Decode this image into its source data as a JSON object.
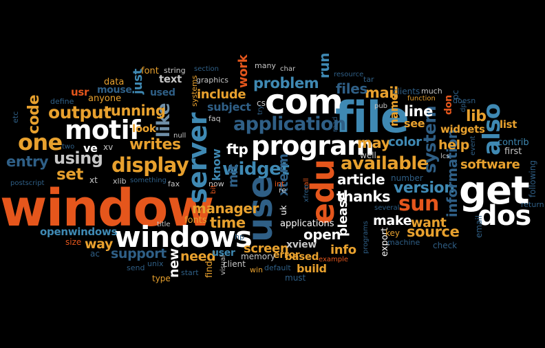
{
  "palette": {
    "background": "#000000",
    "orange_red": "#E5561C",
    "orange": "#E8A12E",
    "white": "#FFFFFF",
    "blue": "#3F89B3",
    "dark_blue": "#2F5F86",
    "light_gray": "#C7C7C7",
    "gray_blue": "#6F8FA8"
  },
  "words": [
    {
      "text": "window",
      "color": "orange_red"
    },
    {
      "text": "com",
      "color": "white"
    },
    {
      "text": "file",
      "color": "blue"
    },
    {
      "text": "get",
      "color": "white"
    },
    {
      "text": "program",
      "color": "white"
    },
    {
      "text": "windows",
      "color": "white"
    },
    {
      "text": "motif",
      "color": "white"
    },
    {
      "text": "server",
      "color": "blue"
    },
    {
      "text": "use",
      "color": "dark_blue"
    },
    {
      "text": "edu",
      "color": "orange_red"
    },
    {
      "text": "dos",
      "color": "white"
    },
    {
      "text": "one",
      "color": "orange"
    },
    {
      "text": "application",
      "color": "dark_blue"
    },
    {
      "text": "display",
      "color": "orange"
    },
    {
      "text": "available",
      "color": "orange"
    },
    {
      "text": "also",
      "color": "blue"
    },
    {
      "text": "sun",
      "color": "orange_red"
    },
    {
      "text": "widget",
      "color": "blue"
    },
    {
      "text": "using",
      "color": "light_gray"
    },
    {
      "text": "output",
      "color": "orange"
    },
    {
      "text": "like",
      "color": "gray_blue"
    },
    {
      "text": "version",
      "color": "blue"
    },
    {
      "text": "set",
      "color": "orange"
    },
    {
      "text": "entry",
      "color": "dark_blue"
    },
    {
      "text": "code",
      "color": "orange"
    },
    {
      "text": "writes",
      "color": "orange"
    },
    {
      "text": "software",
      "color": "orange"
    },
    {
      "text": "problem",
      "color": "blue"
    },
    {
      "text": "system",
      "color": "dark_blue"
    },
    {
      "text": "line",
      "color": "white"
    },
    {
      "text": "lib",
      "color": "orange"
    },
    {
      "text": "running",
      "color": "orange"
    },
    {
      "text": "information",
      "color": "dark_blue"
    },
    {
      "text": "source",
      "color": "orange"
    },
    {
      "text": "manager",
      "color": "orange"
    },
    {
      "text": "time",
      "color": "orange"
    },
    {
      "text": "thanks",
      "color": "white"
    },
    {
      "text": "mail",
      "color": "orange"
    },
    {
      "text": "files",
      "color": "dark_blue"
    },
    {
      "text": "may",
      "color": "orange"
    },
    {
      "text": "article",
      "color": "white"
    },
    {
      "text": "open",
      "color": "white"
    },
    {
      "text": "xterm",
      "color": "dark_blue"
    },
    {
      "text": "please",
      "color": "white"
    },
    {
      "text": "want",
      "color": "orange"
    },
    {
      "text": "make",
      "color": "white"
    },
    {
      "text": "info",
      "color": "orange"
    },
    {
      "text": "need",
      "color": "orange"
    },
    {
      "text": "support",
      "color": "dark_blue"
    },
    {
      "text": "way",
      "color": "orange"
    },
    {
      "text": "screen",
      "color": "orange"
    },
    {
      "text": "new",
      "color": "white"
    },
    {
      "text": "help",
      "color": "orange"
    },
    {
      "text": "color",
      "color": "blue"
    },
    {
      "text": "just",
      "color": "blue"
    },
    {
      "text": "mit",
      "color": "dark_blue"
    },
    {
      "text": "include",
      "color": "orange"
    },
    {
      "text": "work",
      "color": "orange_red"
    },
    {
      "text": "run",
      "color": "blue"
    },
    {
      "text": "ftp",
      "color": "white"
    },
    {
      "text": "know",
      "color": "blue"
    },
    {
      "text": "subject",
      "color": "dark_blue"
    },
    {
      "text": "used",
      "color": "dark_blue"
    },
    {
      "text": "text",
      "color": "light_gray"
    },
    {
      "text": "font",
      "color": "orange"
    },
    {
      "text": "data",
      "color": "orange"
    },
    {
      "text": "usr",
      "color": "orange_red"
    },
    {
      "text": "mouse",
      "color": "dark_blue"
    },
    {
      "text": "anyone",
      "color": "orange"
    },
    {
      "text": "look",
      "color": "orange"
    },
    {
      "text": "ve",
      "color": "white"
    },
    {
      "text": "xv",
      "color": "light_gray"
    },
    {
      "text": "xt",
      "color": "light_gray"
    },
    {
      "text": "xlib",
      "color": "light_gray"
    },
    {
      "text": "fax",
      "color": "light_gray"
    },
    {
      "text": "now",
      "color": "light_gray"
    },
    {
      "text": "fonts",
      "color": "orange"
    },
    {
      "text": "user",
      "color": "blue"
    },
    {
      "text": "xview",
      "color": "light_gray"
    },
    {
      "text": "error",
      "color": "orange"
    },
    {
      "text": "based",
      "color": "orange"
    },
    {
      "text": "build",
      "color": "orange"
    },
    {
      "text": "memory",
      "color": "light_gray"
    },
    {
      "text": "client",
      "color": "light_gray"
    },
    {
      "text": "applications",
      "color": "white"
    },
    {
      "text": "uk",
      "color": "white"
    },
    {
      "text": "name",
      "color": "orange"
    },
    {
      "text": "see",
      "color": "orange"
    },
    {
      "text": "well",
      "color": "light_gray"
    },
    {
      "text": "export",
      "color": "white"
    },
    {
      "text": "widgets",
      "color": "orange"
    },
    {
      "text": "list",
      "color": "orange"
    },
    {
      "text": "contrib",
      "color": "blue"
    },
    {
      "text": "first",
      "color": "light_gray"
    },
    {
      "text": "email",
      "color": "dark_blue"
    },
    {
      "text": "openwindows",
      "color": "blue"
    },
    {
      "text": "graphics",
      "color": "light_gray"
    },
    {
      "text": "string",
      "color": "light_gray"
    },
    {
      "text": "section",
      "color": "dark_blue"
    },
    {
      "text": "many",
      "color": "light_gray"
    },
    {
      "text": "char",
      "color": "light_gray"
    },
    {
      "text": "tar",
      "color": "dark_blue"
    },
    {
      "text": "resource",
      "color": "dark_blue"
    },
    {
      "text": "clients",
      "color": "dark_blue"
    },
    {
      "text": "much",
      "color": "light_gray"
    },
    {
      "text": "function",
      "color": "orange"
    },
    {
      "text": "doesn",
      "color": "dark_blue"
    },
    {
      "text": "pub",
      "color": "light_gray"
    },
    {
      "text": "key",
      "color": "orange"
    },
    {
      "text": "number",
      "color": "dark_blue"
    },
    {
      "text": "lcs",
      "color": "light_gray"
    },
    {
      "text": "following",
      "color": "dark_blue"
    },
    {
      "text": "return",
      "color": "dark_blue"
    },
    {
      "text": "check",
      "color": "dark_blue"
    },
    {
      "text": "machine",
      "color": "dark_blue"
    },
    {
      "text": "several",
      "color": "dark_blue"
    },
    {
      "text": "example",
      "color": "orange_red"
    },
    {
      "text": "must",
      "color": "dark_blue"
    },
    {
      "text": "default",
      "color": "dark_blue"
    },
    {
      "text": "win",
      "color": "orange"
    },
    {
      "text": "visual",
      "color": "light_gray"
    },
    {
      "text": "find",
      "color": "orange"
    },
    {
      "text": "start",
      "color": "dark_blue"
    },
    {
      "text": "type",
      "color": "orange"
    },
    {
      "text": "unix",
      "color": "dark_blue"
    },
    {
      "text": "send",
      "color": "dark_blue"
    },
    {
      "text": "ac",
      "color": "dark_blue"
    },
    {
      "text": "size",
      "color": "orange_red"
    },
    {
      "text": "title",
      "color": "light_gray"
    },
    {
      "text": "postscript",
      "color": "dark_blue"
    },
    {
      "text": "something",
      "color": "dark_blue"
    },
    {
      "text": "two",
      "color": "dark_blue"
    },
    {
      "text": "etc",
      "color": "dark_blue"
    },
    {
      "text": "define",
      "color": "dark_blue"
    },
    {
      "text": "null",
      "color": "light_gray"
    },
    {
      "text": "faq",
      "color": "light_gray"
    },
    {
      "text": "systems",
      "color": "orange"
    },
    {
      "text": "cs",
      "color": "light_gray"
    },
    {
      "text": "try",
      "color": "dark_blue"
    },
    {
      "text": "read",
      "color": "dark_blue"
    },
    {
      "text": "call",
      "color": "orange_red"
    },
    {
      "text": "xfree",
      "color": "dark_blue"
    },
    {
      "text": "re",
      "color": "light_gray"
    },
    {
      "text": "int",
      "color": "orange_red"
    },
    {
      "text": "hp",
      "color": "dark_blue"
    },
    {
      "text": "bit",
      "color": "orange_red"
    },
    {
      "text": "programs",
      "color": "dark_blue"
    },
    {
      "text": "dpi",
      "color": "dark_blue"
    },
    {
      "text": "pc",
      "color": "dark_blue"
    },
    {
      "text": "event",
      "color": "dark_blue"
    },
    {
      "text": "don",
      "color": "orange_red"
    }
  ]
}
